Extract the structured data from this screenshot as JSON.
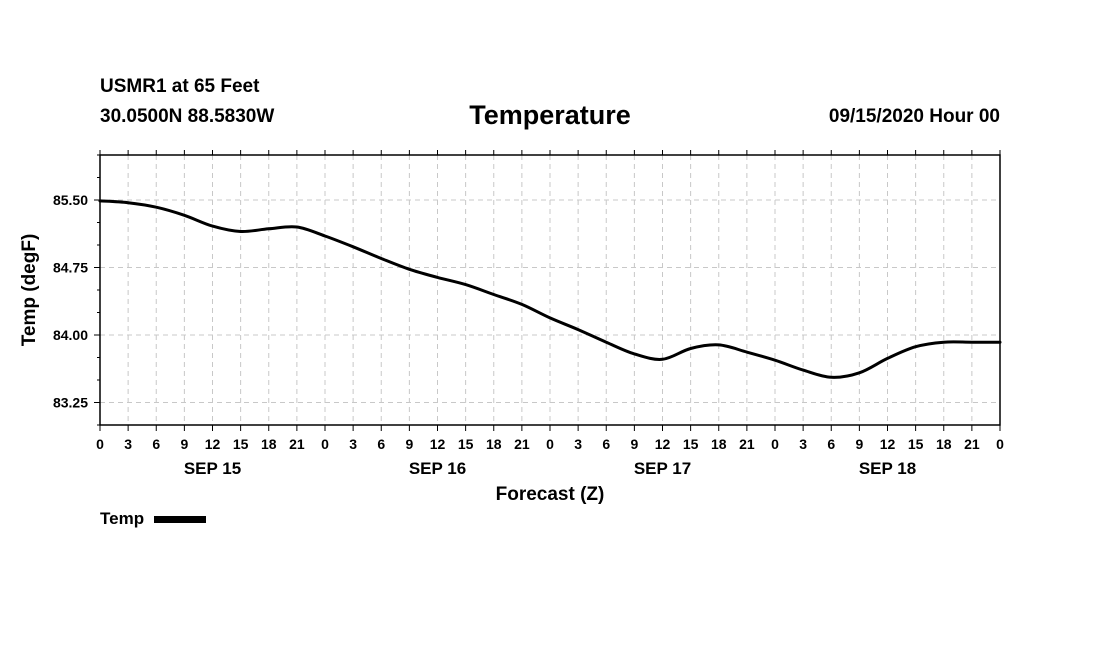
{
  "header": {
    "station": "USMR1 at 65 Feet",
    "coords": "30.0500N 88.5830W",
    "datetime": "09/15/2020 Hour 00"
  },
  "legend": {
    "label": "Temp",
    "color": "#000000"
  },
  "chart_data": {
    "type": "line",
    "title": "Temperature",
    "xlabel": "Forecast (Z)",
    "ylabel": "Temp (degF)",
    "xlim": [
      0,
      96
    ],
    "ylim": [
      83.0,
      86.0
    ],
    "grid": true,
    "x_tick_labels": [
      "0",
      "3",
      "6",
      "9",
      "12",
      "15",
      "18",
      "21",
      "0",
      "3",
      "6",
      "9",
      "12",
      "15",
      "18",
      "21",
      "0",
      "3",
      "6",
      "9",
      "12",
      "15",
      "18",
      "21",
      "0",
      "3",
      "6",
      "9",
      "12",
      "15",
      "18",
      "21",
      "0"
    ],
    "y_ticks": [
      83.25,
      84.0,
      84.75,
      85.5
    ],
    "y_tick_labels": [
      "83.25",
      "84.00",
      "84.75",
      "85.50"
    ],
    "day_labels": [
      {
        "text": "SEP 15",
        "hour": 12
      },
      {
        "text": "SEP 16",
        "hour": 36
      },
      {
        "text": "SEP 17",
        "hour": 60
      },
      {
        "text": "SEP 18",
        "hour": 84
      }
    ],
    "series": [
      {
        "name": "Temp",
        "color": "#000000",
        "x": [
          0,
          3,
          6,
          9,
          12,
          15,
          18,
          21,
          24,
          27,
          30,
          33,
          36,
          39,
          42,
          45,
          48,
          51,
          54,
          57,
          60,
          63,
          66,
          69,
          72,
          75,
          78,
          81,
          84,
          87,
          90,
          93,
          96
        ],
        "values": [
          85.49,
          85.47,
          85.42,
          85.33,
          85.21,
          85.15,
          85.18,
          85.2,
          85.1,
          84.98,
          84.85,
          84.73,
          84.64,
          84.56,
          84.45,
          84.34,
          84.19,
          84.06,
          83.92,
          83.79,
          83.73,
          83.85,
          83.89,
          83.81,
          83.72,
          83.61,
          83.53,
          83.58,
          83.74,
          83.87,
          83.92,
          83.92,
          83.92
        ]
      }
    ]
  }
}
